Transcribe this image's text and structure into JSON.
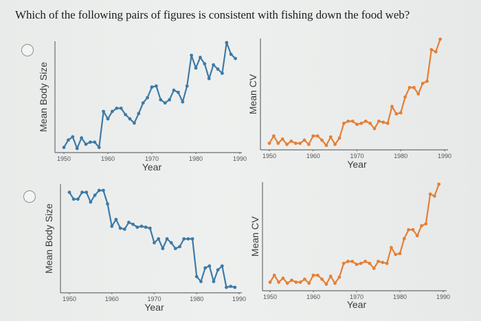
{
  "question": "Which of the following pairs of figures is consistent with fishing down the food web?",
  "options": [
    {
      "id": "option-a",
      "selected": false
    },
    {
      "id": "option-b",
      "selected": false
    }
  ],
  "colors": {
    "body_size_series": "#3d7aa6",
    "cv_series": "#e57f35",
    "axis": "#6a6c6e",
    "tick_text": "#555555"
  },
  "chart_data": [
    {
      "type": "line",
      "option": "A",
      "title": "",
      "xlabel": "Year",
      "ylabel": "Mean Body Size",
      "xticks": [
        "1950",
        "1960",
        "1970",
        "1980",
        "1990"
      ],
      "xlim": [
        1950,
        1990
      ],
      "ylim": [
        0,
        100
      ],
      "grid": false,
      "x": [
        1950,
        1951,
        1952,
        1953,
        1954,
        1955,
        1956,
        1957,
        1958,
        1959,
        1960,
        1961,
        1962,
        1963,
        1964,
        1965,
        1966,
        1967,
        1968,
        1969,
        1970,
        1971,
        1972,
        1973,
        1974,
        1975,
        1976,
        1977,
        1978,
        1979,
        1980,
        1981,
        1982,
        1983,
        1984,
        1985,
        1986,
        1987,
        1988,
        1989
      ],
      "series": [
        {
          "name": "Mean Body Size",
          "values": [
            1,
            8,
            11,
            0,
            10,
            4,
            6,
            6,
            1,
            35,
            28,
            35,
            38,
            38,
            32,
            28,
            24,
            33,
            43,
            48,
            58,
            59,
            46,
            43,
            46,
            55,
            53,
            44,
            59,
            88,
            76,
            86,
            80,
            66,
            79,
            75,
            71,
            100,
            89,
            85
          ]
        }
      ]
    },
    {
      "type": "line",
      "option": "A",
      "title": "",
      "xlabel": "Year",
      "ylabel": "Mean CV",
      "xticks": [
        "1950",
        "1960",
        "1970",
        "1980",
        "1990"
      ],
      "xlim": [
        1950,
        1990
      ],
      "ylim": [
        0,
        100
      ],
      "grid": false,
      "x": [
        1950,
        1951,
        1952,
        1953,
        1954,
        1955,
        1956,
        1957,
        1958,
        1959,
        1960,
        1961,
        1962,
        1963,
        1964,
        1965,
        1966,
        1967,
        1968,
        1969,
        1970,
        1971,
        1972,
        1973,
        1974,
        1975,
        1976,
        1977,
        1978,
        1979,
        1980,
        1981,
        1982,
        1983,
        1984,
        1985,
        1986,
        1987,
        1988,
        1989
      ],
      "series": [
        {
          "name": "Mean CV",
          "values": [
            1,
            8,
            1,
            5,
            0,
            3,
            1,
            1,
            4,
            0,
            8,
            8,
            4,
            -1,
            7,
            0,
            6,
            20,
            22,
            22,
            19,
            20,
            22,
            20,
            15,
            22,
            21,
            20,
            36,
            29,
            30,
            45,
            54,
            54,
            48,
            58,
            60,
            90,
            88,
            100
          ]
        }
      ]
    },
    {
      "type": "line",
      "option": "B",
      "title": "",
      "xlabel": "Year",
      "ylabel": "Mean Body Size",
      "xticks": [
        "1950",
        "1960",
        "1970",
        "1980",
        "1990"
      ],
      "xlim": [
        1950,
        1990
      ],
      "ylim": [
        0,
        100
      ],
      "grid": false,
      "x": [
        1950,
        1951,
        1952,
        1953,
        1954,
        1955,
        1956,
        1957,
        1958,
        1959,
        1960,
        1961,
        1962,
        1963,
        1964,
        1965,
        1966,
        1967,
        1968,
        1969,
        1970,
        1971,
        1972,
        1973,
        1974,
        1975,
        1976,
        1977,
        1978,
        1979,
        1980,
        1981,
        1982,
        1983,
        1984,
        1985,
        1986,
        1987,
        1988,
        1989
      ],
      "series": [
        {
          "name": "Mean Body Size",
          "values": [
            98,
            91,
            91,
            98,
            98,
            88,
            95,
            100,
            100,
            86,
            63,
            70,
            61,
            60,
            67,
            65,
            62,
            63,
            62,
            61,
            46,
            50,
            40,
            50,
            46,
            40,
            42,
            50,
            50,
            50,
            11,
            6,
            20,
            22,
            6,
            18,
            22,
            0,
            1,
            0
          ]
        }
      ]
    },
    {
      "type": "line",
      "option": "B",
      "title": "",
      "xlabel": "Year",
      "ylabel": "Mean CV",
      "xticks": [
        "1950",
        "1960",
        "1970",
        "1980",
        "1990"
      ],
      "xlim": [
        1950,
        1990
      ],
      "ylim": [
        0,
        100
      ],
      "grid": false,
      "x": [
        1950,
        1951,
        1952,
        1953,
        1954,
        1955,
        1956,
        1957,
        1958,
        1959,
        1960,
        1961,
        1962,
        1963,
        1964,
        1965,
        1966,
        1967,
        1968,
        1969,
        1970,
        1971,
        1972,
        1973,
        1974,
        1975,
        1976,
        1977,
        1978,
        1979,
        1980,
        1981,
        1982,
        1983,
        1984,
        1985,
        1986,
        1987,
        1988,
        1989
      ],
      "series": [
        {
          "name": "Mean CV",
          "values": [
            1,
            8,
            1,
            5,
            0,
            3,
            1,
            1,
            4,
            0,
            8,
            8,
            4,
            -1,
            7,
            0,
            6,
            20,
            22,
            22,
            19,
            20,
            22,
            20,
            15,
            22,
            21,
            20,
            36,
            29,
            30,
            45,
            54,
            54,
            48,
            58,
            60,
            90,
            88,
            100
          ]
        }
      ]
    }
  ]
}
